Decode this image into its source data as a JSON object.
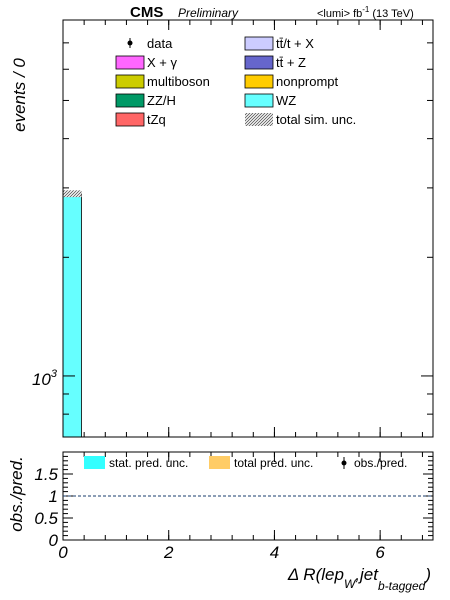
{
  "header": {
    "experiment": "CMS",
    "status": "Preliminary",
    "lumi_prefix": "<lumi> fb",
    "lumi_exp": "-1",
    "lumi_suffix": "(13 TeV)"
  },
  "main_legend": [
    {
      "label": "data",
      "style": "marker",
      "color": "#000000"
    },
    {
      "label": "tt̄/t + X",
      "style": "box",
      "color": "#ccccff"
    },
    {
      "label": "X + γ",
      "style": "box",
      "color": "#ff66ff"
    },
    {
      "label": "tt̄ + Z",
      "style": "box",
      "color": "#6666cc"
    },
    {
      "label": "multiboson",
      "style": "box",
      "color": "#cccc00"
    },
    {
      "label": "nonprompt",
      "style": "box",
      "color": "#ffcc00"
    },
    {
      "label": "ZZ/H",
      "style": "box",
      "color": "#009966"
    },
    {
      "label": "WZ",
      "style": "box",
      "color": "#66ffff"
    },
    {
      "label": "tZq",
      "style": "box",
      "color": "#ff6666"
    },
    {
      "label": "total sim. unc.",
      "style": "hatch",
      "color": "#555555"
    }
  ],
  "ratio_legend": [
    {
      "label": "stat. pred. unc.",
      "color": "#33ffff"
    },
    {
      "label": "total pred. unc.",
      "color": "#ffcc66"
    },
    {
      "label": "obs./pred.",
      "color": "#000000"
    }
  ],
  "chart_data": [
    {
      "type": "bar",
      "panel": "main",
      "ylabel": "events / 0",
      "yscale": "log",
      "ylim": [
        700,
        8000
      ],
      "y_tick_labels": [
        {
          "value": 1000,
          "base": "10",
          "exp": "3"
        }
      ],
      "xlim": [
        0,
        7
      ],
      "bins": [
        {
          "x_low": 0.0,
          "x_high": 0.35
        }
      ],
      "series": [
        {
          "name": "WZ",
          "color": "#66ffff",
          "values": [
            2900
          ]
        }
      ],
      "uncertainty": {
        "name": "total sim. unc.",
        "values": [
          2900
        ],
        "rel_unc": 0.02
      }
    },
    {
      "type": "line",
      "panel": "ratio",
      "ylabel": "obs./pred.",
      "xlabel_base": "Δ R(lep",
      "xlabel_sub1": "W",
      "xlabel_mid": ",jet",
      "xlabel_sub2": "b-tagged",
      "xlabel_end": ")",
      "xlim": [
        0,
        7
      ],
      "x_ticks": [
        0,
        2,
        4,
        6
      ],
      "ylim": [
        0,
        2
      ],
      "y_ticks": [
        0,
        0.5,
        1,
        1.5
      ],
      "reference_line": 1
    }
  ]
}
